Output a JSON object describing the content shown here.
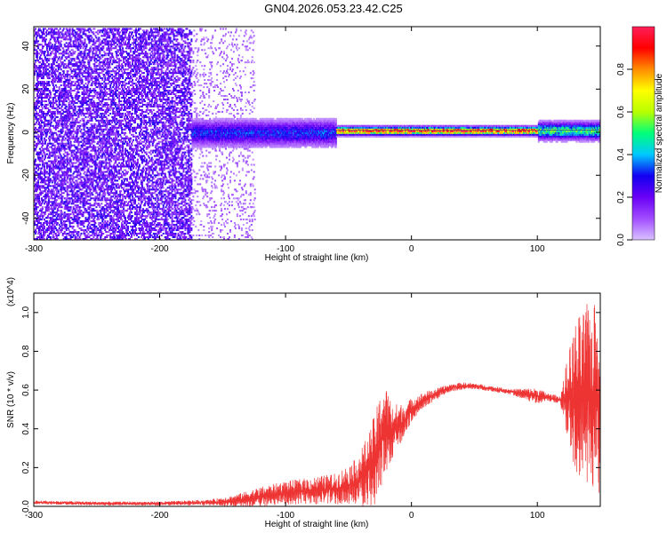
{
  "page": {
    "title": "GN04.2026.053.23.42.C25"
  },
  "chart_data": [
    {
      "type": "heatmap",
      "title": "",
      "xlabel": "Height of straight line (km)",
      "ylabel": "Frequency (Hz)",
      "xlim": [
        -300,
        150
      ],
      "ylim": [
        -50,
        49
      ],
      "x_ticks": [
        -300,
        -200,
        -100,
        0,
        100
      ],
      "y_ticks": [
        -40,
        -20,
        0,
        20,
        40
      ],
      "x_tick_labels": [
        "-300",
        "-200",
        "-100",
        "0",
        "100"
      ],
      "y_tick_labels": [
        "-40",
        "-20",
        "0",
        "20",
        "40"
      ],
      "colorbar": {
        "label": "Normalized spectral amplitude",
        "range": [
          0,
          1
        ],
        "ticks": [
          0,
          0.2,
          0.4,
          0.6,
          0.8
        ],
        "tick_labels": [
          "0.0",
          "0.2",
          "0.4",
          "0.6",
          "0.8"
        ],
        "colors": [
          "#d9c2ff",
          "#a14dff",
          "#6a00f5",
          "#1200f0",
          "#00c8ff",
          "#00ff7a",
          "#b8ff00",
          "#ffff00",
          "#ff8c00",
          "#ff0000",
          "#ff1f5a"
        ]
      },
      "regions": [
        {
          "x": [
            -300,
            -175
          ],
          "freq_range": [
            -50,
            49
          ],
          "amplitude": 0.15,
          "pattern": "broadband noise"
        },
        {
          "x": [
            -175,
            -125
          ],
          "freq_range": [
            -50,
            49
          ],
          "amplitude": 0.05,
          "pattern": "sparse broadband noise"
        },
        {
          "x": [
            -175,
            -60
          ],
          "freq_center": 0,
          "freq_halfwidth": 6,
          "amplitude": 0.3
        },
        {
          "x": [
            -60,
            100
          ],
          "freq_center": 1,
          "freq_halfwidth": 2,
          "amplitude": 0.9
        },
        {
          "x": [
            100,
            150
          ],
          "freq_center": 1,
          "freq_halfwidth": 4,
          "amplitude": 0.5
        }
      ]
    },
    {
      "type": "line",
      "title": "",
      "xlabel": "Height of straight line (km)",
      "ylabel": "SNR (10 * v/v)",
      "y_multiplier": "(x10^4)",
      "xlim": [
        -300,
        150
      ],
      "ylim": [
        0,
        1.1
      ],
      "x_ticks": [
        -300,
        -200,
        -100,
        0,
        100
      ],
      "y_ticks": [
        0,
        0.2,
        0.4,
        0.6,
        0.8,
        1.0
      ],
      "x_tick_labels": [
        "-300",
        "-200",
        "-100",
        "0",
        "100"
      ],
      "y_tick_labels": [
        "0.0",
        "0.2",
        "0.4",
        "0.6",
        "0.8",
        "1.0"
      ],
      "line_color": "#ee3333",
      "series": [
        {
          "name": "",
          "x": [
            -300,
            -250,
            -200,
            -160,
            -140,
            -120,
            -100,
            -80,
            -60,
            -45,
            -35,
            -28,
            -22,
            -15,
            -5,
            0,
            10,
            20,
            30,
            40,
            50,
            60,
            70,
            80,
            90,
            100,
            110,
            118,
            125,
            130,
            140,
            150
          ],
          "y": [
            0.02,
            0.015,
            0.015,
            0.02,
            0.03,
            0.05,
            0.07,
            0.08,
            0.09,
            0.12,
            0.18,
            0.25,
            0.4,
            0.38,
            0.45,
            0.5,
            0.55,
            0.58,
            0.61,
            0.62,
            0.62,
            0.61,
            0.6,
            0.59,
            0.58,
            0.57,
            0.56,
            0.55,
            0.55,
            0.55,
            0.55,
            0.55
          ],
          "noise_amplitude": [
            0.01,
            0.01,
            0.01,
            0.015,
            0.03,
            0.05,
            0.06,
            0.07,
            0.08,
            0.12,
            0.18,
            0.25,
            0.25,
            0.15,
            0.08,
            0.06,
            0.04,
            0.03,
            0.02,
            0.02,
            0.015,
            0.015,
            0.015,
            0.015,
            0.03,
            0.04,
            0.02,
            0.02,
            0.25,
            0.4,
            0.5,
            0.5
          ]
        }
      ]
    }
  ]
}
